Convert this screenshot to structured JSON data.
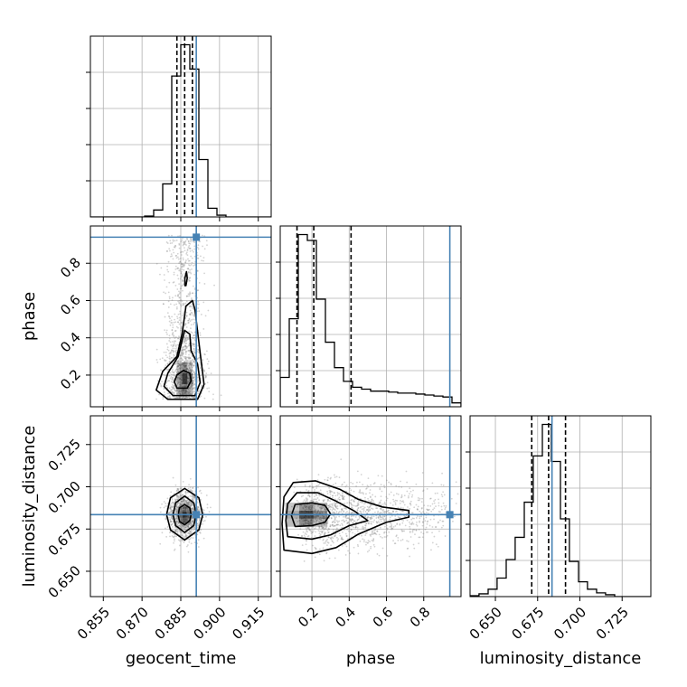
{
  "chart_data": {
    "type": "corner",
    "parameters": [
      "geocent_time",
      "phase",
      "luminosity_distance"
    ],
    "truths": {
      "geocent_time": 0.891,
      "phase": 0.94,
      "luminosity_distance": 0.6835
    },
    "colors": {
      "truth": "#4682b4",
      "hist": "#000000",
      "grid": "#b0b0b0",
      "scatter": "#808080"
    },
    "axes": {
      "geocent_time": {
        "range": [
          0.85,
          0.92
        ],
        "ticks": [
          0.855,
          0.87,
          0.885,
          0.9,
          0.915
        ],
        "tick_labels": [
          "0.855",
          "0.870",
          "0.885",
          "0.900",
          "0.915"
        ]
      },
      "phase": {
        "range": [
          0.03,
          1.0
        ],
        "ticks": [
          0.2,
          0.4,
          0.6,
          0.8
        ],
        "tick_labels": [
          "0.2",
          "0.4",
          "0.6",
          "0.8"
        ]
      },
      "luminosity_distance": {
        "range": [
          0.635,
          0.742
        ],
        "ticks": [
          0.65,
          0.675,
          0.7,
          0.725
        ],
        "tick_labels": [
          "0.650",
          "0.675",
          "0.700",
          "0.725"
        ]
      }
    },
    "histograms": {
      "geocent_time": {
        "bin_edges": [
          0.85,
          0.8535,
          0.857,
          0.8605,
          0.864,
          0.8675,
          0.871,
          0.8745,
          0.878,
          0.8815,
          0.885,
          0.8885,
          0.892,
          0.8955,
          0.899,
          0.9025,
          0.906,
          0.9095,
          0.913,
          0.9165,
          0.92
        ],
        "counts": [
          0,
          0,
          0,
          0,
          0,
          0,
          0.005,
          0.04,
          0.19,
          0.81,
          0.99,
          0.85,
          0.33,
          0.05,
          0.01,
          0,
          0,
          0,
          0,
          0
        ],
        "quantiles": [
          0.8835,
          0.8865,
          0.8895
        ]
      },
      "phase": {
        "bin_edges": [
          0.03,
          0.0785,
          0.127,
          0.1755,
          0.224,
          0.2725,
          0.321,
          0.3695,
          0.418,
          0.4665,
          0.515,
          0.5635,
          0.612,
          0.6605,
          0.709,
          0.7575,
          0.806,
          0.8545,
          0.903,
          0.9515,
          1.0
        ],
        "counts": [
          0.15,
          0.45,
          0.88,
          0.85,
          0.55,
          0.33,
          0.2,
          0.13,
          0.1,
          0.09,
          0.08,
          0.08,
          0.075,
          0.07,
          0.07,
          0.065,
          0.06,
          0.055,
          0.05,
          0.02
        ],
        "quantiles": [
          0.12,
          0.21,
          0.41
        ]
      },
      "luminosity_distance": {
        "bin_edges": [
          0.635,
          0.6403,
          0.6457,
          0.651,
          0.6564,
          0.6617,
          0.6671,
          0.6724,
          0.6778,
          0.6831,
          0.6885,
          0.6938,
          0.6992,
          0.7045,
          0.7099,
          0.7152,
          0.7206,
          0.7259,
          0.7313,
          0.7366,
          0.742
        ],
        "counts": [
          0.005,
          0.015,
          0.04,
          0.1,
          0.2,
          0.32,
          0.51,
          0.76,
          0.93,
          0.73,
          0.42,
          0.19,
          0.08,
          0.04,
          0.02,
          0.01,
          0,
          0,
          0,
          0
        ],
        "quantiles": [
          0.6715,
          0.6815,
          0.6915
        ]
      }
    },
    "scatter_pairs": [
      {
        "x": "geocent_time",
        "y": "phase",
        "center": [
          0.8865,
          0.18
        ],
        "contours": [
          {
            "level": "39%",
            "points": [
              [
                0.8835,
                0.13
              ],
              [
                0.8875,
                0.13
              ],
              [
                0.889,
                0.17
              ],
              [
                0.8885,
                0.21
              ],
              [
                0.886,
                0.225
              ],
              [
                0.8835,
                0.2
              ],
              [
                0.8825,
                0.165
              ]
            ]
          },
          {
            "level": "86%",
            "points": [
              [
                0.882,
                0.09
              ],
              [
                0.8905,
                0.09
              ],
              [
                0.8925,
                0.16
              ],
              [
                0.8915,
                0.26
              ],
              [
                0.889,
                0.33
              ],
              [
                0.8885,
                0.42
              ],
              [
                0.8865,
                0.44
              ],
              [
                0.884,
                0.3
              ],
              [
                0.88,
                0.21
              ],
              [
                0.8785,
                0.14
              ]
            ]
          },
          {
            "level": "99%",
            "points": [
              [
                0.88,
                0.07
              ],
              [
                0.8915,
                0.07
              ],
              [
                0.894,
                0.15
              ],
              [
                0.8925,
                0.32
              ],
              [
                0.8905,
                0.55
              ],
              [
                0.8895,
                0.6
              ],
              [
                0.887,
                0.57
              ],
              [
                0.8855,
                0.42
              ],
              [
                0.8835,
                0.3
              ],
              [
                0.878,
                0.22
              ],
              [
                0.8755,
                0.12
              ]
            ]
          },
          {
            "level": "island",
            "points": [
              [
                0.887,
                0.68
              ],
              [
                0.8875,
                0.72
              ],
              [
                0.8872,
                0.755
              ],
              [
                0.8866,
                0.72
              ],
              [
                0.8866,
                0.68
              ]
            ]
          }
        ]
      },
      {
        "x": "geocent_time",
        "y": "luminosity_distance",
        "center": [
          0.8865,
          0.6835
        ],
        "contours": [
          {
            "level": "39%",
            "points": [
              [
                0.8865,
                0.6775
              ],
              [
                0.8885,
                0.68
              ],
              [
                0.889,
                0.6835
              ],
              [
                0.8885,
                0.6875
              ],
              [
                0.8865,
                0.6895
              ],
              [
                0.8845,
                0.6875
              ],
              [
                0.884,
                0.6835
              ],
              [
                0.8845,
                0.6795
              ]
            ]
          },
          {
            "level": "86%",
            "points": [
              [
                0.8865,
                0.673
              ],
              [
                0.89,
                0.677
              ],
              [
                0.891,
                0.6835
              ],
              [
                0.89,
                0.6905
              ],
              [
                0.8865,
                0.6945
              ],
              [
                0.883,
                0.6905
              ],
              [
                0.882,
                0.6835
              ],
              [
                0.883,
                0.677
              ]
            ]
          },
          {
            "level": "99%",
            "points": [
              [
                0.8865,
                0.6685
              ],
              [
                0.892,
                0.6745
              ],
              [
                0.8935,
                0.6835
              ],
              [
                0.892,
                0.6935
              ],
              [
                0.8865,
                0.699
              ],
              [
                0.881,
                0.6935
              ],
              [
                0.8795,
                0.6835
              ],
              [
                0.881,
                0.6745
              ]
            ]
          }
        ]
      },
      {
        "x": "phase",
        "y": "luminosity_distance",
        "center": [
          0.17,
          0.6835
        ],
        "contours": [
          {
            "level": "39%",
            "points": [
              [
                0.11,
                0.6765
              ],
              [
                0.2,
                0.677
              ],
              [
                0.27,
                0.679
              ],
              [
                0.3,
                0.684
              ],
              [
                0.27,
                0.689
              ],
              [
                0.2,
                0.6905
              ],
              [
                0.11,
                0.6895
              ],
              [
                0.09,
                0.683
              ]
            ]
          },
          {
            "level": "86%",
            "points": [
              [
                0.07,
                0.6705
              ],
              [
                0.2,
                0.669
              ],
              [
                0.3,
                0.6715
              ],
              [
                0.4,
                0.677
              ],
              [
                0.5,
                0.68
              ],
              [
                0.43,
                0.6855
              ],
              [
                0.33,
                0.6915
              ],
              [
                0.23,
                0.6965
              ],
              [
                0.12,
                0.6965
              ],
              [
                0.07,
                0.69
              ],
              [
                0.06,
                0.68
              ]
            ]
          },
          {
            "level": "99%",
            "points": [
              [
                0.05,
                0.6625
              ],
              [
                0.2,
                0.6605
              ],
              [
                0.33,
                0.664
              ],
              [
                0.45,
                0.672
              ],
              [
                0.6,
                0.679
              ],
              [
                0.72,
                0.682
              ],
              [
                0.72,
                0.686
              ],
              [
                0.58,
                0.688
              ],
              [
                0.45,
                0.6925
              ],
              [
                0.35,
                0.6985
              ],
              [
                0.22,
                0.7035
              ],
              [
                0.1,
                0.7025
              ],
              [
                0.05,
                0.694
              ],
              [
                0.04,
                0.678
              ]
            ]
          }
        ]
      }
    ]
  }
}
